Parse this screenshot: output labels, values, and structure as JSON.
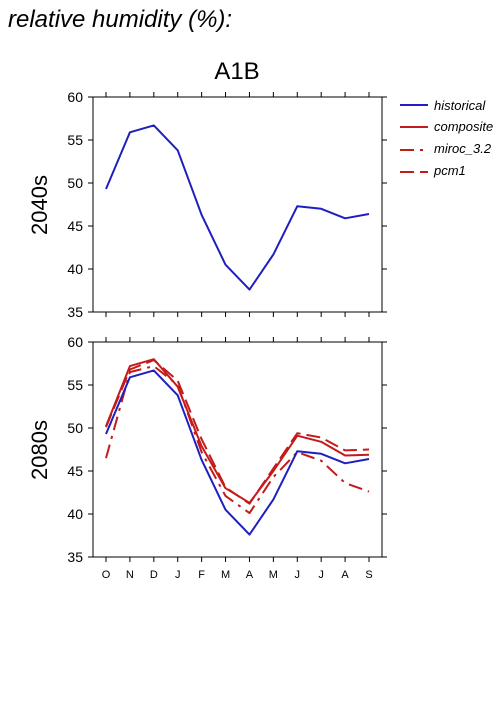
{
  "page_title": "relative humidity (%):",
  "scenario_title": "A1B",
  "legend": [
    {
      "label": "historical",
      "color": "#1f1fbf",
      "dash": "solid"
    },
    {
      "label": "composite",
      "color": "#c41a1a",
      "dash": "solid"
    },
    {
      "label": "miroc_3.2",
      "color": "#c41a1a",
      "dash": "dashdot"
    },
    {
      "label": "pcm1",
      "color": "#c41a1a",
      "dash": "dashed"
    }
  ],
  "chart_data": [
    {
      "type": "line",
      "panel_label": "2040s",
      "categories": [
        "O",
        "N",
        "D",
        "J",
        "F",
        "M",
        "A",
        "M",
        "J",
        "J",
        "A",
        "S"
      ],
      "ylim": [
        35,
        60
      ],
      "yticks": [
        35,
        40,
        45,
        50,
        55,
        60
      ],
      "show_xtick_labels": false,
      "series": [
        {
          "name": "historical",
          "color": "#1f1fbf",
          "dash": "solid",
          "values": [
            49.3,
            55.9,
            56.7,
            53.8,
            46.3,
            40.5,
            37.6,
            41.7,
            47.3,
            47.0,
            45.9,
            46.4
          ]
        }
      ]
    },
    {
      "type": "line",
      "panel_label": "2080s",
      "categories": [
        "O",
        "N",
        "D",
        "J",
        "F",
        "M",
        "A",
        "M",
        "J",
        "J",
        "A",
        "S"
      ],
      "ylim": [
        35,
        60
      ],
      "yticks": [
        35,
        40,
        45,
        50,
        55,
        60
      ],
      "show_xtick_labels": true,
      "series": [
        {
          "name": "historical",
          "color": "#1f1fbf",
          "dash": "solid",
          "values": [
            49.3,
            55.9,
            56.7,
            53.8,
            46.3,
            40.5,
            37.6,
            41.7,
            47.3,
            47.0,
            45.9,
            46.4
          ]
        },
        {
          "name": "composite",
          "color": "#c41a1a",
          "dash": "solid",
          "values": [
            50.2,
            57.2,
            58.0,
            54.8,
            47.9,
            43.0,
            41.3,
            45.0,
            49.1,
            48.4,
            46.8,
            46.9
          ]
        },
        {
          "name": "miroc_3.2",
          "color": "#c41a1a",
          "dash": "dashdot",
          "values": [
            46.5,
            56.5,
            57.2,
            55.0,
            47.2,
            42.1,
            40.1,
            44.3,
            47.2,
            46.2,
            43.6,
            42.6
          ]
        },
        {
          "name": "pcm1",
          "color": "#c41a1a",
          "dash": "dashed",
          "values": [
            50.1,
            56.8,
            57.9,
            55.5,
            48.7,
            43.1,
            41.2,
            45.3,
            49.4,
            48.9,
            47.4,
            47.5
          ]
        }
      ]
    }
  ]
}
